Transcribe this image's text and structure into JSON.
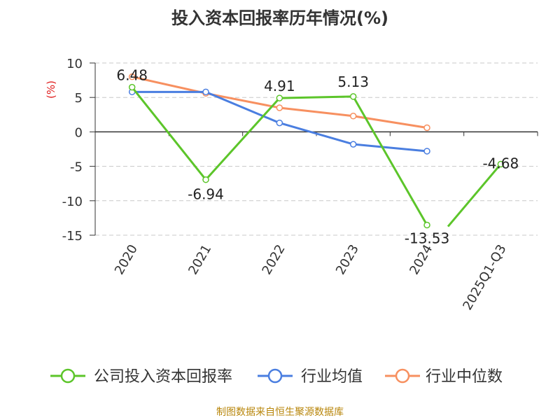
{
  "chart_data": {
    "type": "line",
    "title": "投入资本回报率历年情况(%)",
    "ylabel": "(%)",
    "xlabel": "",
    "categories": [
      "2020",
      "2021",
      "2022",
      "2023",
      "2024",
      "2025Q1-Q3"
    ],
    "ylim": [
      -15,
      10
    ],
    "yticks": [
      10,
      5,
      0,
      -5,
      -10,
      -15
    ],
    "grid": true,
    "legend_position": "bottom",
    "series": [
      {
        "name": "公司投入资本回报率",
        "color": "#5cc52a",
        "values": [
          6.48,
          -6.94,
          4.91,
          5.13,
          -13.53,
          -4.68
        ],
        "labels": [
          "6.48",
          "-6.94",
          "4.91",
          "5.13",
          "-13.53",
          "-4.68"
        ]
      },
      {
        "name": "行业均值",
        "color": "#4a7ee0",
        "values": [
          5.8,
          5.8,
          1.3,
          -1.8,
          -2.8,
          null
        ]
      },
      {
        "name": "行业中位数",
        "color": "#f79060",
        "values": [
          8.0,
          5.6,
          3.5,
          2.3,
          0.6,
          null
        ]
      }
    ],
    "source": "制图数据来自恒生聚源数据库"
  }
}
